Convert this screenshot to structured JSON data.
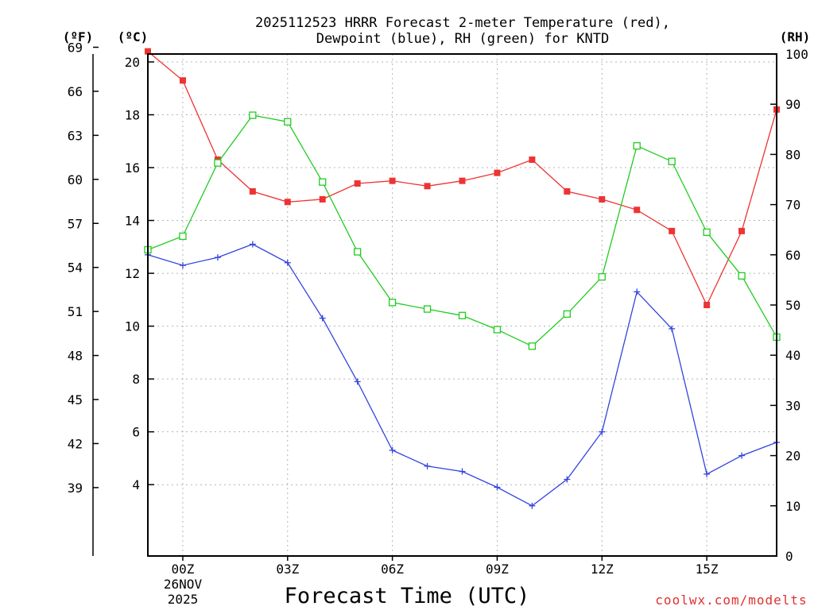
{
  "chart_data": {
    "type": "line",
    "title_line1": "2025112523 HRRR Forecast 2-meter Temperature (red),",
    "title_line2": "Dewpoint (blue), RH (green) for KNTD",
    "xlabel": "Forecast Time (UTC)",
    "credit": "coolwx.com/modelts",
    "date_label_line1": "26NOV",
    "date_label_line2": "2025",
    "units": {
      "fahrenheit": "(ºF)",
      "celsius": "(ºC)",
      "rh": "(RH)"
    },
    "x_hours": [
      -1,
      0,
      1,
      2,
      3,
      4,
      5,
      6,
      7,
      8,
      9,
      10,
      11,
      12,
      13,
      14,
      15,
      16,
      17
    ],
    "x_ticks": [
      {
        "hour": 0,
        "label": "00Z"
      },
      {
        "hour": 3,
        "label": "03Z"
      },
      {
        "hour": 6,
        "label": "06Z"
      },
      {
        "hour": 9,
        "label": "09Z"
      },
      {
        "hour": 12,
        "label": "12Z"
      },
      {
        "hour": 15,
        "label": "15Z"
      }
    ],
    "xlim": [
      -1,
      17
    ],
    "celsius_axis": {
      "ylim": [
        1.3,
        20.3
      ],
      "ticks": [
        4,
        6,
        8,
        10,
        12,
        14,
        16,
        18,
        20
      ]
    },
    "fahrenheit_axis": {
      "ticks": [
        39,
        42,
        45,
        48,
        51,
        54,
        57,
        60,
        63,
        66,
        69
      ]
    },
    "rh_axis": {
      "ylim": [
        0,
        100
      ],
      "ticks": [
        0,
        10,
        20,
        30,
        40,
        50,
        60,
        70,
        80,
        90,
        100
      ]
    },
    "series": [
      {
        "name": "Temperature",
        "units": "C",
        "color": "#ee3333",
        "marker": "filled-square",
        "values": [
          20.4,
          19.3,
          16.3,
          15.1,
          14.7,
          14.8,
          15.4,
          15.5,
          15.3,
          15.5,
          15.8,
          16.3,
          15.1,
          14.8,
          14.4,
          13.6,
          10.8,
          13.6,
          18.2
        ]
      },
      {
        "name": "Dewpoint",
        "units": "C",
        "color": "#3344dd",
        "marker": "plus",
        "values": [
          12.7,
          12.3,
          12.6,
          13.1,
          12.4,
          10.3,
          7.9,
          5.3,
          4.7,
          4.5,
          3.9,
          3.2,
          4.2,
          6.0,
          11.3,
          9.9,
          4.4,
          5.1,
          5.6
        ]
      },
      {
        "name": "RH",
        "units": "%",
        "color": "#22cc22",
        "marker": "open-square",
        "values": [
          61,
          63.7,
          78.3,
          87.8,
          86.5,
          74.5,
          60.6,
          50.5,
          49.2,
          47.9,
          45.1,
          41.8,
          48.2,
          55.6,
          81.7,
          78.6,
          64.5,
          55.8,
          43.6
        ]
      }
    ]
  }
}
